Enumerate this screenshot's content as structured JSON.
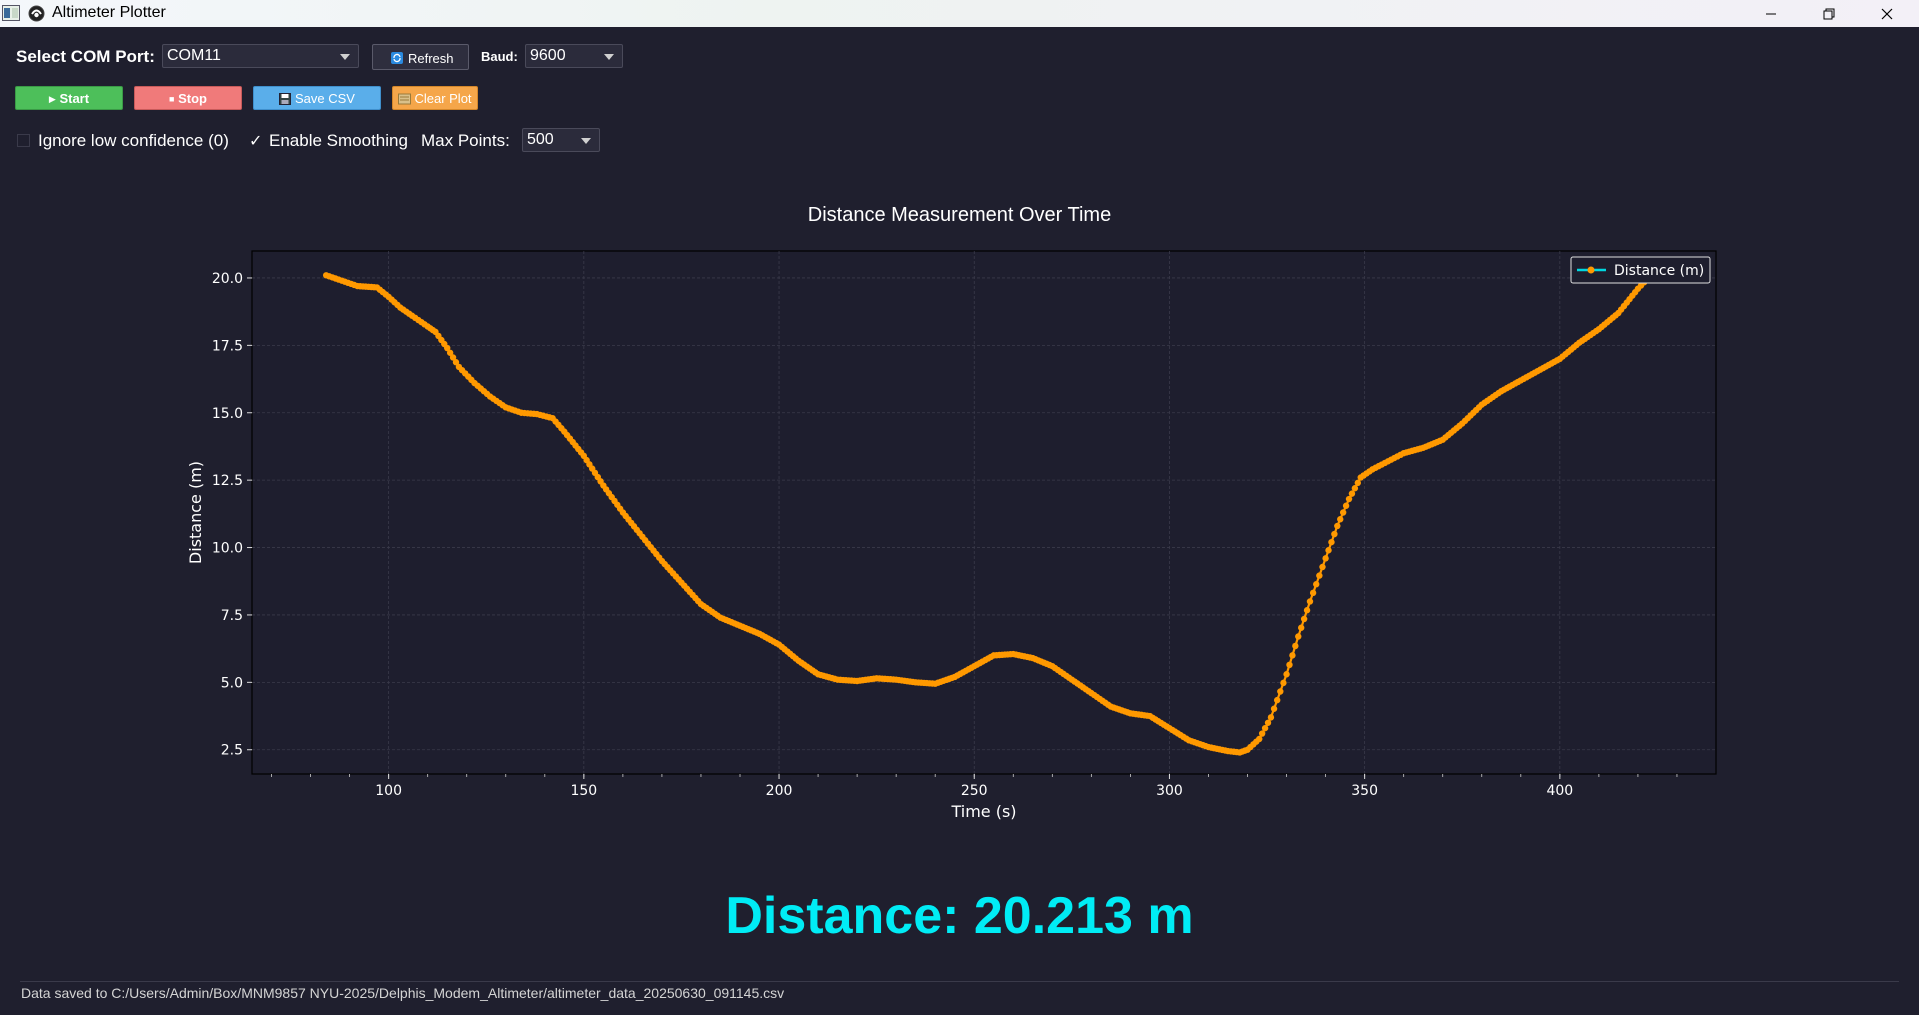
{
  "window": {
    "title": "Altimeter Plotter",
    "controls": [
      "minimize",
      "restore",
      "close"
    ]
  },
  "controls": {
    "com_label": "Select COM Port:",
    "com_value": "COM11",
    "refresh_label": "Refresh",
    "baud_label": "Baud:",
    "baud_value": "9600",
    "start_label": "Start",
    "stop_label": "Stop",
    "save_label": "Save CSV",
    "clear_label": "Clear Plot",
    "ignore_label": "Ignore low confidence (0)",
    "ignore_checked": false,
    "smoothing_label": "Enable Smoothing",
    "smoothing_checked": true,
    "smoothing_mark": "✓",
    "maxpoints_label": "Max Points:",
    "maxpoints_value": "500"
  },
  "colors": {
    "background": "#1f1f2e",
    "plot_bg": "#1e1e2e",
    "line": "#ff9900",
    "line_accent": "#00d7e0",
    "readout": "#00ecf5",
    "start": "#4dbf5a",
    "stop": "#f07a7a",
    "save": "#5aaeea",
    "clear": "#f5a64a"
  },
  "readout": {
    "text": "Distance: 20.213 m"
  },
  "status": {
    "text": "Data saved to C:/Users/Admin/Box/MNM9857 NYU-2025/Delphis_Modem_Altimeter/altimeter_data_20250630_091145.csv"
  },
  "chart_data": {
    "type": "line",
    "title": "Distance Measurement Over Time",
    "xlabel": "Time (s)",
    "ylabel": "Distance (m)",
    "xlim": [
      65,
      440
    ],
    "ylim": [
      1.6,
      21.0
    ],
    "x_ticks": [
      100,
      150,
      200,
      250,
      300,
      350,
      400
    ],
    "y_ticks": [
      2.5,
      5.0,
      7.5,
      10.0,
      12.5,
      15.0,
      17.5,
      20.0
    ],
    "x_tick_labels": [
      "100",
      "150",
      "200",
      "250",
      "300",
      "350",
      "400"
    ],
    "y_tick_labels": [
      "2.5",
      "5.0",
      "7.5",
      "10.0",
      "12.5",
      "15.0",
      "17.5",
      "20.0"
    ],
    "grid": true,
    "legend": {
      "position": "top-right",
      "entries": [
        "Distance (m)"
      ]
    },
    "series": [
      {
        "name": "Distance (m)",
        "x": [
          84,
          88,
          92,
          97,
          100,
          103,
          106,
          110,
          112,
          115,
          118,
          122,
          126,
          130,
          134,
          138,
          142,
          145,
          150,
          155,
          160,
          165,
          170,
          175,
          180,
          185,
          190,
          195,
          200,
          205,
          210,
          215,
          220,
          225,
          230,
          235,
          240,
          245,
          250,
          255,
          260,
          265,
          270,
          275,
          280,
          285,
          290,
          295,
          300,
          305,
          310,
          315,
          318,
          320,
          323,
          326,
          330,
          333,
          336,
          340,
          343,
          346,
          349,
          352,
          356,
          360,
          365,
          370,
          375,
          380,
          385,
          390,
          395,
          400,
          405,
          410,
          415,
          420,
          424
        ],
        "y": [
          20.1,
          19.9,
          19.7,
          19.65,
          19.3,
          18.9,
          18.6,
          18.2,
          18.0,
          17.4,
          16.7,
          16.1,
          15.6,
          15.2,
          15.0,
          14.95,
          14.8,
          14.3,
          13.4,
          12.3,
          11.3,
          10.4,
          9.5,
          8.7,
          7.9,
          7.4,
          7.1,
          6.8,
          6.4,
          5.8,
          5.3,
          5.1,
          5.05,
          5.15,
          5.1,
          5.0,
          4.95,
          5.2,
          5.6,
          6.0,
          6.05,
          5.9,
          5.6,
          5.1,
          4.6,
          4.1,
          3.85,
          3.75,
          3.3,
          2.85,
          2.6,
          2.45,
          2.4,
          2.5,
          2.9,
          3.7,
          5.3,
          6.7,
          8.0,
          9.6,
          10.8,
          11.8,
          12.6,
          12.9,
          13.2,
          13.5,
          13.7,
          14.0,
          14.6,
          15.3,
          15.8,
          16.2,
          16.6,
          17.0,
          17.6,
          18.1,
          18.7,
          19.6,
          20.2
        ]
      }
    ]
  }
}
